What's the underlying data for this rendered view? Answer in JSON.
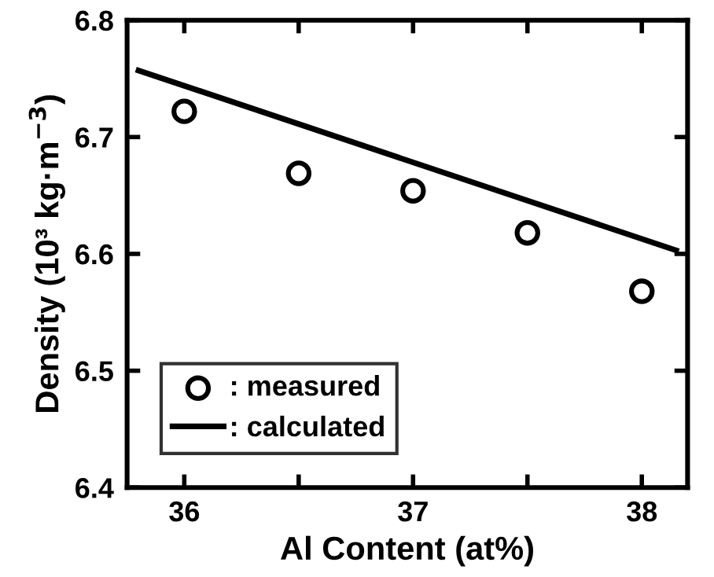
{
  "chart_data": {
    "type": "scatter",
    "xlabel": "Al Content (at%)",
    "ylabel": "Density (10³ kg·m$^{−3}$)",
    "xlim": [
      35.75,
      38.2
    ],
    "ylim": [
      6.4,
      6.8
    ],
    "xticks": [
      36,
      {
        "value": 36.5,
        "label": null
      },
      37,
      {
        "value": 37.5,
        "label": null
      },
      38
    ],
    "yticks": [
      6.4,
      6.5,
      6.6,
      6.7,
      6.8
    ],
    "grid": false,
    "legend": "bottom left",
    "series": [
      {
        "name": ": measured",
        "marker": "circle",
        "color": "#000000",
        "x": [
          36,
          36.5,
          37,
          37.5,
          38
        ],
        "values": [
          6.722,
          6.669,
          6.654,
          6.618,
          6.568
        ]
      },
      {
        "name": ": calculated",
        "type": "line",
        "marker": "none",
        "line_style": "solid",
        "color": "#000000",
        "x": [
          35.8,
          38.15
        ],
        "values": [
          6.757,
          6.603
        ]
      }
    ]
  }
}
